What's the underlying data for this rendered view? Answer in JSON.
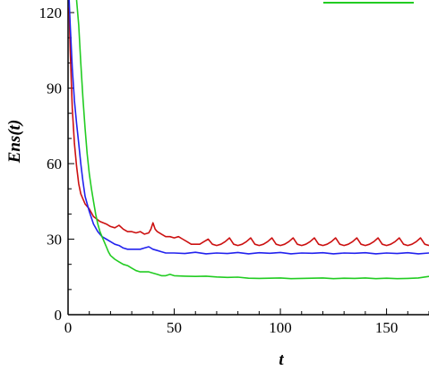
{
  "chart_data": {
    "type": "line",
    "title": "",
    "xlabel": "t",
    "ylabel": "Ens(t)",
    "xlim": [
      0,
      170
    ],
    "ylim": [
      0,
      125
    ],
    "x_ticks": [
      0,
      50,
      100,
      150
    ],
    "y_ticks": [
      0,
      30,
      60,
      90,
      120
    ],
    "grid": false,
    "legend": "top-right (partially cropped)",
    "series": [
      {
        "name": "",
        "color": "#cc1111",
        "points": [
          [
            0.5,
            122
          ],
          [
            1,
            105
          ],
          [
            2,
            82
          ],
          [
            3,
            68
          ],
          [
            4,
            59
          ],
          [
            5,
            52
          ],
          [
            6,
            48
          ],
          [
            7,
            46
          ],
          [
            8,
            44
          ],
          [
            10,
            42
          ],
          [
            12,
            39
          ],
          [
            15,
            37
          ],
          [
            18,
            36
          ],
          [
            20,
            35
          ],
          [
            22,
            34.5
          ],
          [
            24,
            35.5
          ],
          [
            26,
            34
          ],
          [
            28,
            33
          ],
          [
            30,
            33
          ],
          [
            32,
            32.5
          ],
          [
            34,
            33
          ],
          [
            36,
            32
          ],
          [
            38,
            32.5
          ],
          [
            39,
            34
          ],
          [
            40,
            36.5
          ],
          [
            41,
            34
          ],
          [
            42,
            33
          ],
          [
            44,
            32
          ],
          [
            46,
            31
          ],
          [
            48,
            31
          ],
          [
            50,
            30.5
          ],
          [
            52,
            31
          ],
          [
            54,
            30
          ],
          [
            56,
            29
          ],
          [
            58,
            28
          ],
          [
            60,
            28
          ],
          [
            62,
            28
          ],
          [
            64,
            29
          ],
          [
            66,
            30
          ],
          [
            68,
            28
          ],
          [
            70,
            27.5
          ],
          [
            72,
            28
          ],
          [
            74,
            29
          ],
          [
            76,
            30.5
          ],
          [
            78,
            28
          ],
          [
            80,
            27.5
          ],
          [
            82,
            28
          ],
          [
            84,
            29
          ],
          [
            86,
            30.5
          ],
          [
            88,
            28
          ],
          [
            90,
            27.5
          ],
          [
            92,
            28
          ],
          [
            94,
            29
          ],
          [
            96,
            30.5
          ],
          [
            98,
            28
          ],
          [
            100,
            27.5
          ],
          [
            102,
            28
          ],
          [
            104,
            29
          ],
          [
            106,
            30.5
          ],
          [
            108,
            28
          ],
          [
            110,
            27.5
          ],
          [
            112,
            28
          ],
          [
            114,
            29
          ],
          [
            116,
            30.5
          ],
          [
            118,
            28
          ],
          [
            120,
            27.5
          ],
          [
            122,
            28
          ],
          [
            124,
            29
          ],
          [
            126,
            30.5
          ],
          [
            128,
            28
          ],
          [
            130,
            27.5
          ],
          [
            132,
            28
          ],
          [
            134,
            29
          ],
          [
            136,
            30.5
          ],
          [
            138,
            28
          ],
          [
            140,
            27.5
          ],
          [
            142,
            28
          ],
          [
            144,
            29
          ],
          [
            146,
            30.5
          ],
          [
            148,
            28
          ],
          [
            150,
            27.5
          ],
          [
            152,
            28
          ],
          [
            154,
            29
          ],
          [
            156,
            30.5
          ],
          [
            158,
            28
          ],
          [
            160,
            27.5
          ],
          [
            162,
            28
          ],
          [
            164,
            29
          ],
          [
            166,
            30.5
          ],
          [
            168,
            28
          ],
          [
            170,
            27.5
          ]
        ]
      },
      {
        "name": "",
        "color": "#2222ee",
        "points": [
          [
            0.5,
            125
          ],
          [
            1,
            115
          ],
          [
            2,
            98
          ],
          [
            3,
            85
          ],
          [
            4,
            76
          ],
          [
            5,
            68
          ],
          [
            6,
            60
          ],
          [
            7,
            53
          ],
          [
            8,
            47
          ],
          [
            10,
            41
          ],
          [
            12,
            36
          ],
          [
            14,
            33
          ],
          [
            16,
            31
          ],
          [
            18,
            30
          ],
          [
            20,
            29
          ],
          [
            22,
            28
          ],
          [
            24,
            27.5
          ],
          [
            26,
            26.5
          ],
          [
            28,
            26
          ],
          [
            30,
            26
          ],
          [
            32,
            26
          ],
          [
            34,
            26
          ],
          [
            36,
            26.5
          ],
          [
            38,
            27
          ],
          [
            40,
            26
          ],
          [
            42,
            25.5
          ],
          [
            44,
            25
          ],
          [
            46,
            24.5
          ],
          [
            48,
            24.5
          ],
          [
            50,
            24.5
          ],
          [
            55,
            24.3
          ],
          [
            60,
            24.8
          ],
          [
            65,
            24.2
          ],
          [
            70,
            24.5
          ],
          [
            75,
            24.3
          ],
          [
            80,
            24.7
          ],
          [
            85,
            24.2
          ],
          [
            90,
            24.6
          ],
          [
            95,
            24.4
          ],
          [
            100,
            24.7
          ],
          [
            105,
            24.2
          ],
          [
            110,
            24.5
          ],
          [
            115,
            24.4
          ],
          [
            120,
            24.6
          ],
          [
            125,
            24.2
          ],
          [
            130,
            24.5
          ],
          [
            135,
            24.4
          ],
          [
            140,
            24.6
          ],
          [
            145,
            24.2
          ],
          [
            150,
            24.5
          ],
          [
            155,
            24.3
          ],
          [
            160,
            24.6
          ],
          [
            165,
            24.2
          ],
          [
            170,
            24.5
          ]
        ]
      },
      {
        "name": "",
        "color": "#22cc22",
        "points": [
          [
            4,
            125
          ],
          [
            5,
            115
          ],
          [
            6,
            100
          ],
          [
            7,
            86
          ],
          [
            8,
            74
          ],
          [
            9,
            64
          ],
          [
            10,
            56
          ],
          [
            11,
            50
          ],
          [
            12,
            45
          ],
          [
            13,
            40
          ],
          [
            14,
            36
          ],
          [
            15,
            33
          ],
          [
            16,
            31
          ],
          [
            17,
            29
          ],
          [
            18,
            27
          ],
          [
            19,
            25
          ],
          [
            20,
            23.5
          ],
          [
            22,
            22
          ],
          [
            24,
            21
          ],
          [
            26,
            20
          ],
          [
            28,
            19.5
          ],
          [
            30,
            18.5
          ],
          [
            32,
            17.5
          ],
          [
            34,
            17
          ],
          [
            36,
            17
          ],
          [
            38,
            17
          ],
          [
            40,
            16.5
          ],
          [
            42,
            16
          ],
          [
            44,
            15.5
          ],
          [
            46,
            15.5
          ],
          [
            48,
            16
          ],
          [
            50,
            15.5
          ],
          [
            55,
            15.3
          ],
          [
            60,
            15.2
          ],
          [
            65,
            15.3
          ],
          [
            70,
            15
          ],
          [
            75,
            14.8
          ],
          [
            80,
            14.9
          ],
          [
            85,
            14.5
          ],
          [
            90,
            14.4
          ],
          [
            95,
            14.5
          ],
          [
            100,
            14.6
          ],
          [
            105,
            14.3
          ],
          [
            110,
            14.4
          ],
          [
            115,
            14.5
          ],
          [
            120,
            14.6
          ],
          [
            125,
            14.3
          ],
          [
            130,
            14.5
          ],
          [
            135,
            14.4
          ],
          [
            140,
            14.6
          ],
          [
            145,
            14.3
          ],
          [
            150,
            14.5
          ],
          [
            155,
            14.3
          ],
          [
            160,
            14.4
          ],
          [
            165,
            14.6
          ],
          [
            170,
            15.2
          ]
        ]
      }
    ]
  }
}
